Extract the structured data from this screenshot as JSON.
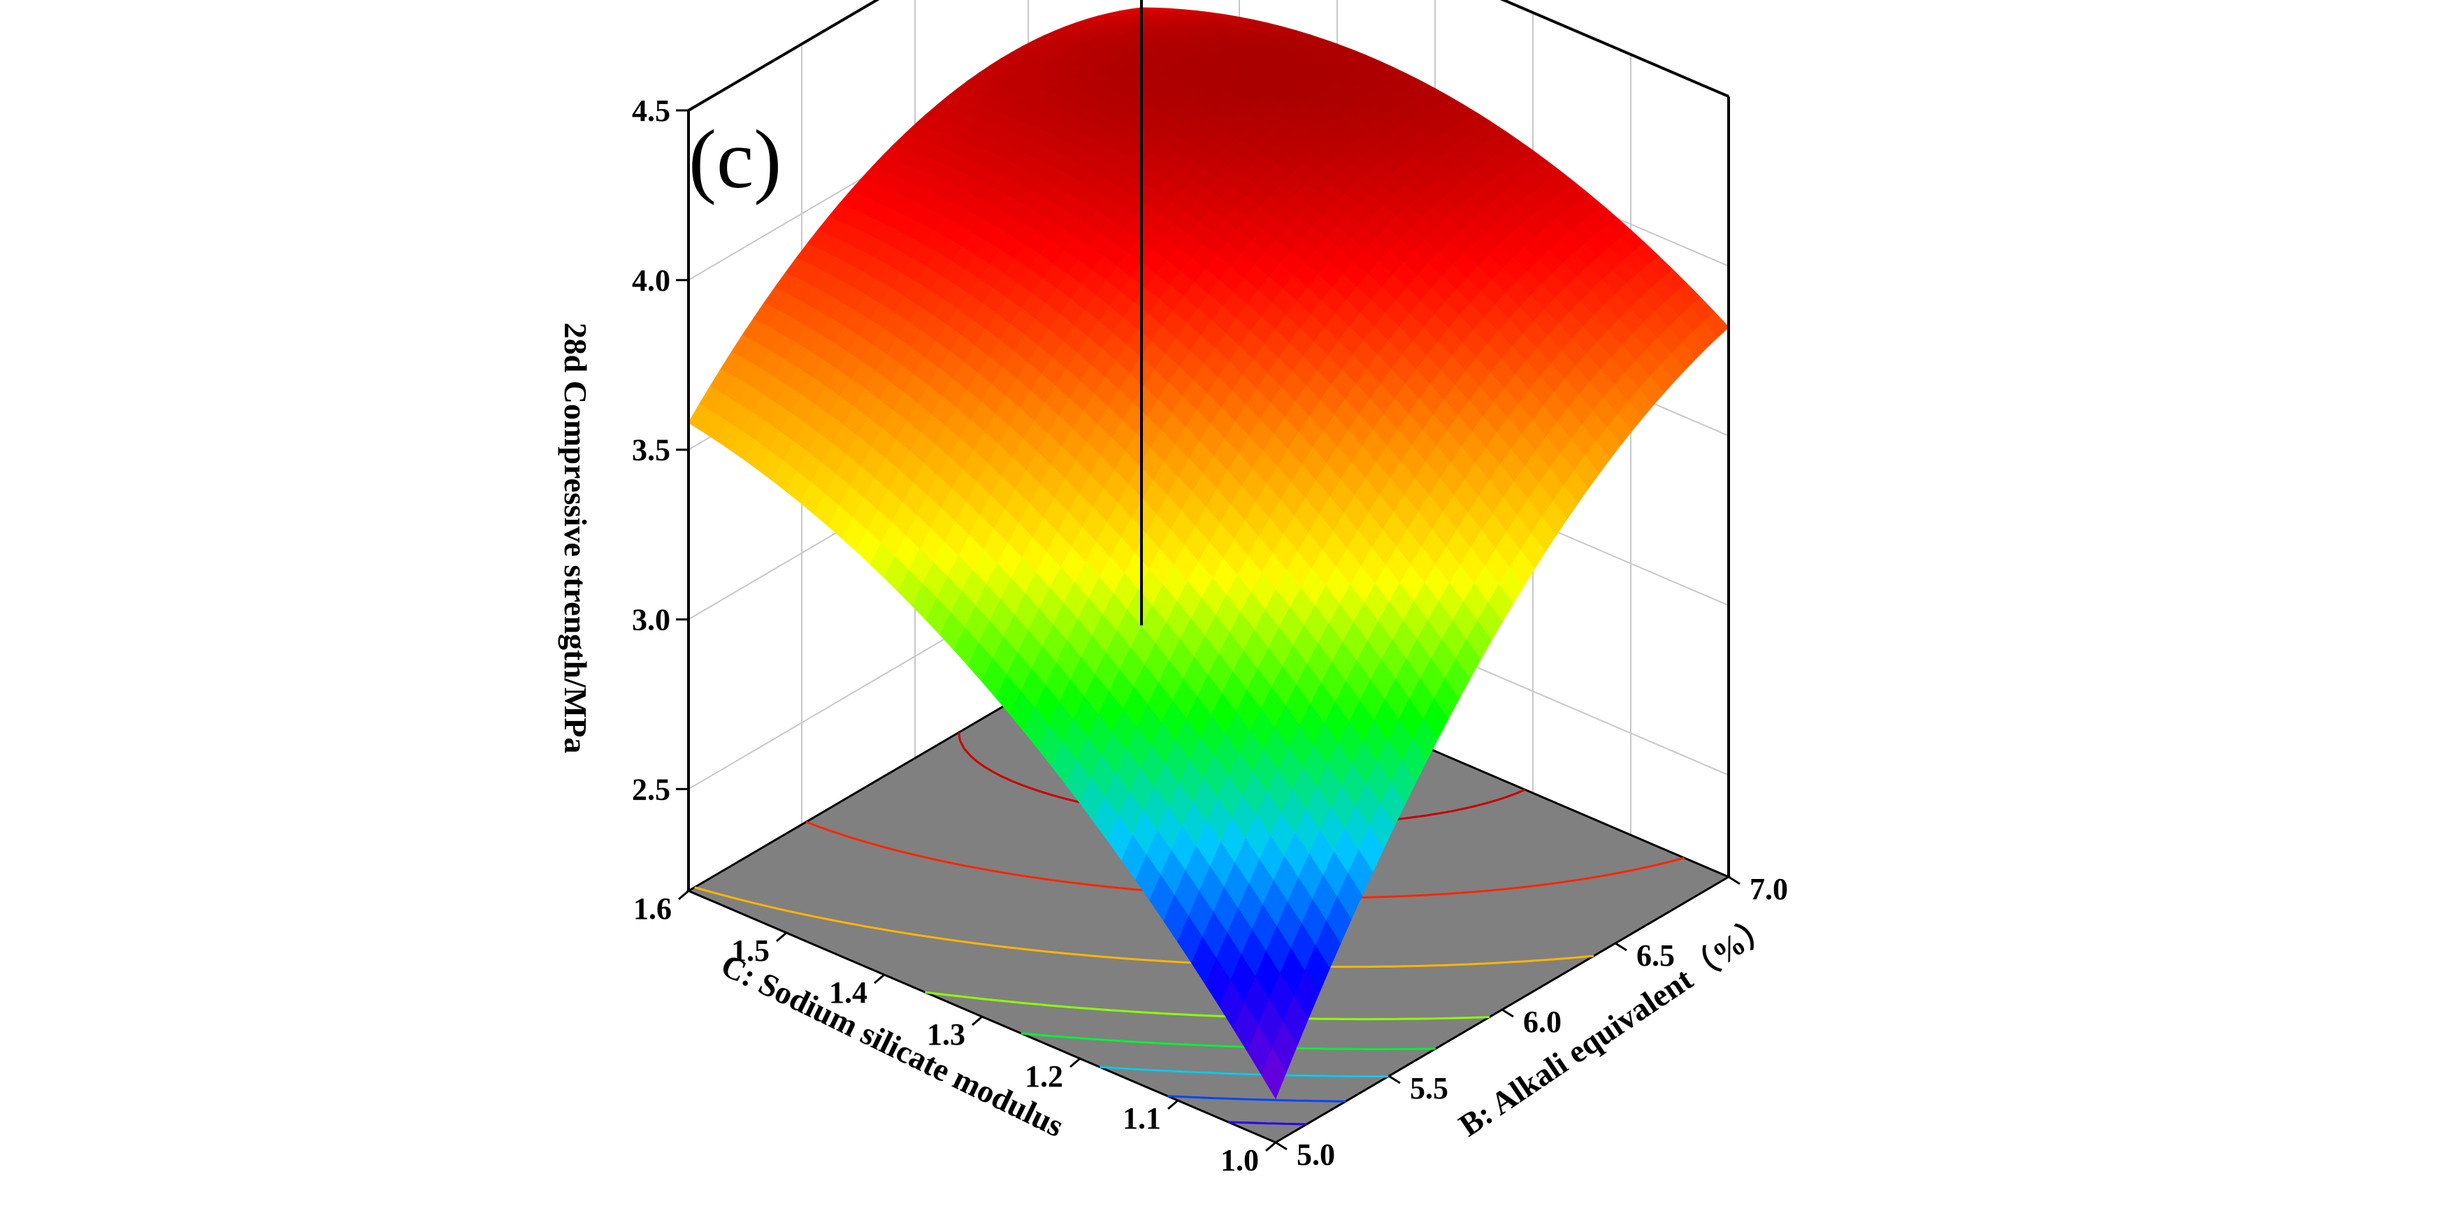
{
  "chart_data": {
    "type": "surface",
    "panel_label": "(c)",
    "zlabel": "28d Compressive strength/MPa",
    "xlabel": "C:  Sodium silicate modulus",
    "ylabel": "B:  Alkali equivalent（%）",
    "c_range": [
      1.0,
      1.6
    ],
    "b_range": [
      5.0,
      7.0
    ],
    "zlim": [
      2.2,
      4.5
    ],
    "c_ticks": [
      "1.0",
      "1.1",
      "1.2",
      "1.3",
      "1.4",
      "1.5",
      "1.6"
    ],
    "b_ticks": [
      "5.0",
      "5.5",
      "6.0",
      "6.5",
      "7.0"
    ],
    "z_ticks": [
      "2.5",
      "3.0",
      "3.5",
      "4.0",
      "4.5"
    ],
    "grid": true,
    "floor_color": "#808080",
    "colormap": [
      "#7b00d4",
      "#0000ff",
      "#00c8ff",
      "#00ff00",
      "#ffff00",
      "#ff8800",
      "#ff0000",
      "#8b0000"
    ],
    "surface_points": [
      {
        "c": 1.0,
        "b": 5.0,
        "z": 2.33
      },
      {
        "c": 1.6,
        "b": 5.0,
        "z": 3.58
      },
      {
        "c": 1.0,
        "b": 7.0,
        "z": 3.82
      },
      {
        "c": 1.6,
        "b": 7.0,
        "z": 4.02
      },
      {
        "c": 1.3,
        "b": 6.0,
        "z": 4.25
      }
    ],
    "contour_levels": [
      2.5,
      2.7,
      2.9,
      3.1,
      3.3,
      3.6,
      3.9,
      4.1,
      4.2
    ]
  }
}
